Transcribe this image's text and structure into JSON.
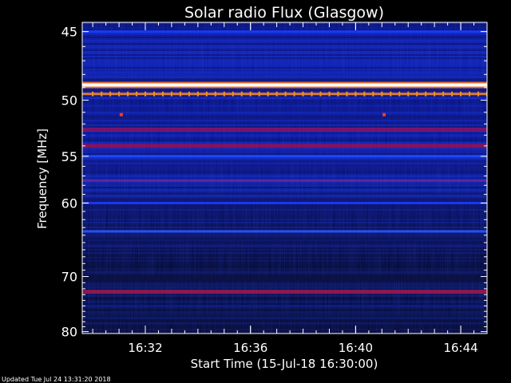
{
  "chart_data": {
    "type": "heatmap",
    "title": "Solar radio Flux (Glasgow)",
    "ylabel": "Frequency [MHz]",
    "xlabel": "Start Time (15-Jul-18 16:30:00)",
    "footer": "Updated Tue Jul 24 13:31:20 2018",
    "x_unit": "UT time",
    "x_range": [
      "16:29:36",
      "16:45:00"
    ],
    "y_range": [
      44.4,
      80.4
    ],
    "y_scale": "reciprocal (frequency increases downward, compressed at high frequency)",
    "y_ticks": [
      45,
      50,
      55,
      60,
      70,
      80
    ],
    "x_ticks": [
      "16:32",
      "16:36",
      "16:40",
      "16:44"
    ],
    "background_colors": [
      "#04072a",
      "#0a1696",
      "#1438e0"
    ],
    "bands": [
      {
        "freq": 45.0,
        "intensity": "medium",
        "color": "#1a3cff"
      },
      {
        "freq": 48.8,
        "intensity": "very high",
        "color": "#ffffff",
        "halo": "#ff7a1a"
      },
      {
        "freq": 49.5,
        "intensity": "periodic spikes",
        "color": "#ff8c1a"
      },
      {
        "freq": 52.5,
        "intensity": "high",
        "color": "#8a1060"
      },
      {
        "freq": 54.0,
        "intensity": "high",
        "color": "#9a1050"
      },
      {
        "freq": 55.0,
        "intensity": "medium",
        "color": "#2050ff"
      },
      {
        "freq": 57.5,
        "intensity": "medium",
        "color": "#6a2aa0"
      },
      {
        "freq": 60.0,
        "intensity": "medium",
        "color": "#1c3cff"
      },
      {
        "freq": 63.5,
        "intensity": "medium",
        "color": "#2a5aff"
      },
      {
        "freq": 72.5,
        "intensity": "high",
        "color": "#a01a50"
      },
      {
        "freq": 75.0,
        "intensity": "low",
        "color": "#0c1e90"
      }
    ],
    "spike_train": {
      "freq": 49.5,
      "start": "16:30:00",
      "end": "16:45:00",
      "step_seconds": 20,
      "color": "#ff8c1a"
    },
    "bursts": [
      {
        "time": "16:31:05",
        "freq": 51.2,
        "color": "#ff3a1a"
      },
      {
        "time": "16:41:05",
        "freq": 51.2,
        "color": "#ff3a1a"
      }
    ]
  }
}
